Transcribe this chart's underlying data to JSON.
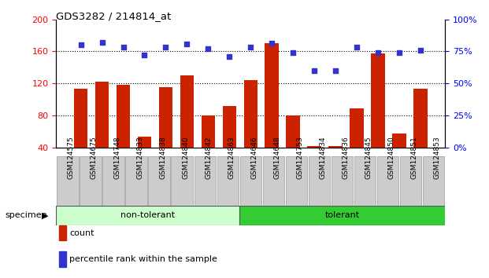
{
  "title": "GDS3282 / 214814_at",
  "samples": [
    "GSM124575",
    "GSM124675",
    "GSM124748",
    "GSM124833",
    "GSM124838",
    "GSM124840",
    "GSM124842",
    "GSM124863",
    "GSM124646",
    "GSM124648",
    "GSM124753",
    "GSM124834",
    "GSM124836",
    "GSM124845",
    "GSM124850",
    "GSM124851",
    "GSM124853"
  ],
  "counts": [
    113,
    122,
    118,
    53,
    115,
    130,
    80,
    92,
    124,
    170,
    80,
    42,
    42,
    89,
    158,
    57,
    113
  ],
  "percentile_left_axis": [
    168,
    171,
    165,
    156,
    165,
    169,
    163,
    154,
    165,
    170,
    159,
    136,
    136,
    165,
    159,
    159,
    161
  ],
  "groups": [
    "non-tolerant",
    "non-tolerant",
    "non-tolerant",
    "non-tolerant",
    "non-tolerant",
    "non-tolerant",
    "non-tolerant",
    "non-tolerant",
    "tolerant",
    "tolerant",
    "tolerant",
    "tolerant",
    "tolerant",
    "tolerant",
    "tolerant",
    "tolerant",
    "tolerant"
  ],
  "bar_color": "#cc2200",
  "dot_color": "#3333cc",
  "ylim_left": [
    40,
    200
  ],
  "ylim_right": [
    0,
    100
  ],
  "yticks_left": [
    40,
    80,
    120,
    160,
    200
  ],
  "yticks_right": [
    0,
    25,
    50,
    75,
    100
  ],
  "ytick_labels_right": [
    "0%",
    "25%",
    "50%",
    "75%",
    "100%"
  ],
  "grid_values": [
    80,
    120,
    160
  ],
  "non_tolerant_color": "#ccffcc",
  "tolerant_color": "#33cc33",
  "non_tolerant_label": "non-tolerant",
  "tolerant_label": "tolerant",
  "specimen_label": "specimen",
  "legend_count": "count",
  "legend_pct": "percentile rank within the sample",
  "bar_bottom": 40,
  "xtick_bg": "#cccccc"
}
